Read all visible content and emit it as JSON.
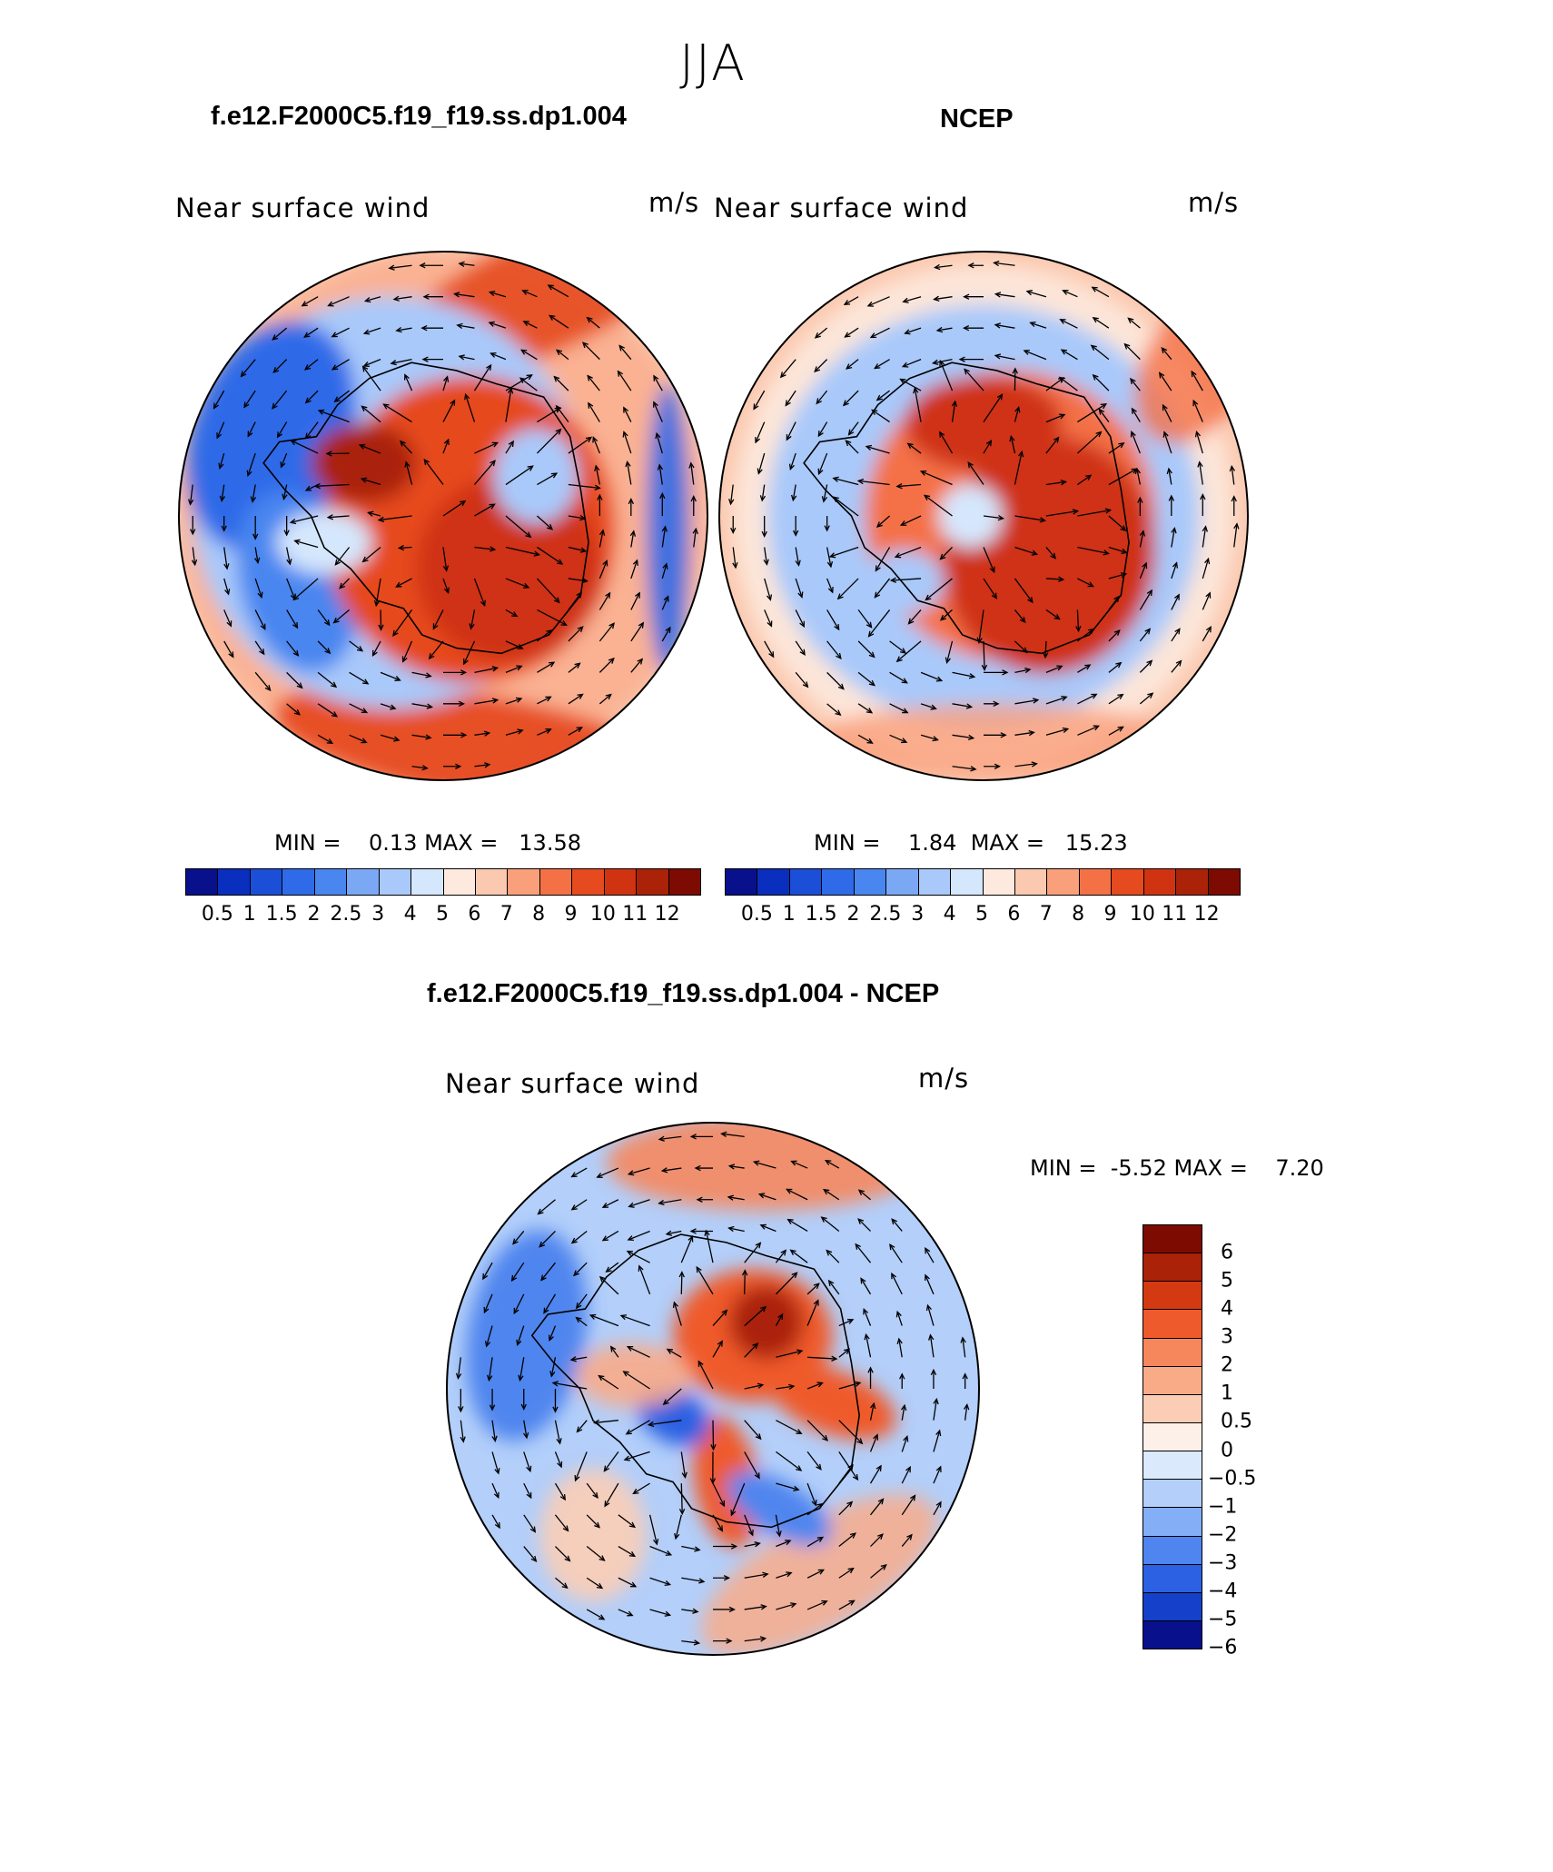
{
  "season": "JJA",
  "panels": [
    {
      "title": "f.e12.F2000C5.f19_f19.ss.dp1.004",
      "variable": "Near surface wind",
      "units": "m/s",
      "min_label": "MIN =",
      "min_value": "0.13",
      "max_label": "MAX =",
      "max_value": "13.58"
    },
    {
      "title": "NCEP",
      "variable": "Near surface wind",
      "units": "m/s",
      "min_label": "MIN =",
      "min_value": "1.84",
      "max_label": "MAX =",
      "max_value": "15.23"
    },
    {
      "title": "f.e12.F2000C5.f19_f19.ss.dp1.004 - NCEP",
      "variable": "Near surface wind",
      "units": "m/s",
      "min_label": "MIN =",
      "min_value": "-5.52",
      "max_label": "MAX =",
      "max_value": "7.20"
    }
  ],
  "colorbar_abs": {
    "labels": [
      "0.5",
      "1",
      "1.5",
      "2",
      "2.5",
      "3",
      "4",
      "5",
      "6",
      "7",
      "8",
      "9",
      "10",
      "11",
      "12"
    ],
    "colors": [
      "#08108c",
      "#0a2fbf",
      "#1b4fd8",
      "#2f6ae8",
      "#4a86f0",
      "#7aa8f5",
      "#a9c9fa",
      "#d5e7fd",
      "#fde9dd",
      "#fbc9b0",
      "#f99f7a",
      "#f47146",
      "#e64a1f",
      "#cf3312",
      "#aa2208",
      "#7d0b02"
    ]
  },
  "colorbar_diff": {
    "labels": [
      "6",
      "5",
      "4",
      "3",
      "2",
      "1",
      "0.5",
      "0",
      "−0.5",
      "−1",
      "−2",
      "−3",
      "−4",
      "−5",
      "−6"
    ],
    "colors": [
      "#7d0b02",
      "#aa2208",
      "#d33a12",
      "#ef5a2c",
      "#f6875c",
      "#f9ab88",
      "#fccdb5",
      "#fdf0e8",
      "#dbe9fd",
      "#b3cffa",
      "#84aef5",
      "#4f85ee",
      "#2b61e2",
      "#1540c9",
      "#08108c"
    ]
  }
}
